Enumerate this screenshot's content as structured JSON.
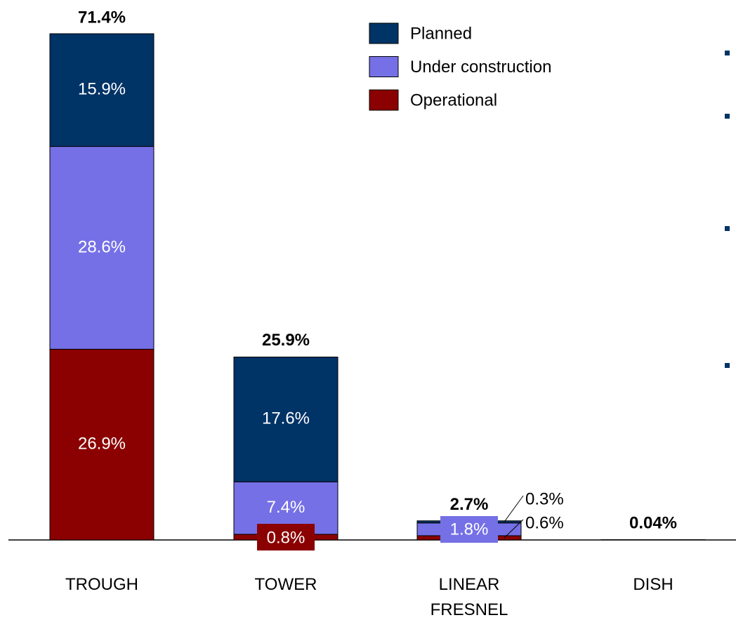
{
  "chart_data": {
    "type": "stacked_bar",
    "categories": [
      "TROUGH",
      "TOWER",
      "LINEAR FRESNEL",
      "DISH"
    ],
    "series": [
      {
        "name": "Operational",
        "color": "#8b0000",
        "values": [
          26.9,
          0.8,
          0.6,
          0.04
        ],
        "value_labels": [
          "26.9%",
          "0.8%",
          "0.6%",
          null
        ]
      },
      {
        "name": "Under construction",
        "color": "#7570e6",
        "values": [
          28.6,
          7.4,
          1.8,
          null
        ],
        "value_labels": [
          "28.6%",
          "7.4%",
          "1.8%",
          null
        ]
      },
      {
        "name": "Planned",
        "color": "#003366",
        "values": [
          15.9,
          17.6,
          0.3,
          null
        ],
        "value_labels": [
          "15.9%",
          "17.6%",
          "0.3%",
          null
        ]
      }
    ],
    "totals": [
      71.4,
      25.9,
      2.7,
      0.04
    ],
    "total_labels": [
      "71.4%",
      "25.9%",
      "2.7%",
      "0.04%"
    ]
  }
}
